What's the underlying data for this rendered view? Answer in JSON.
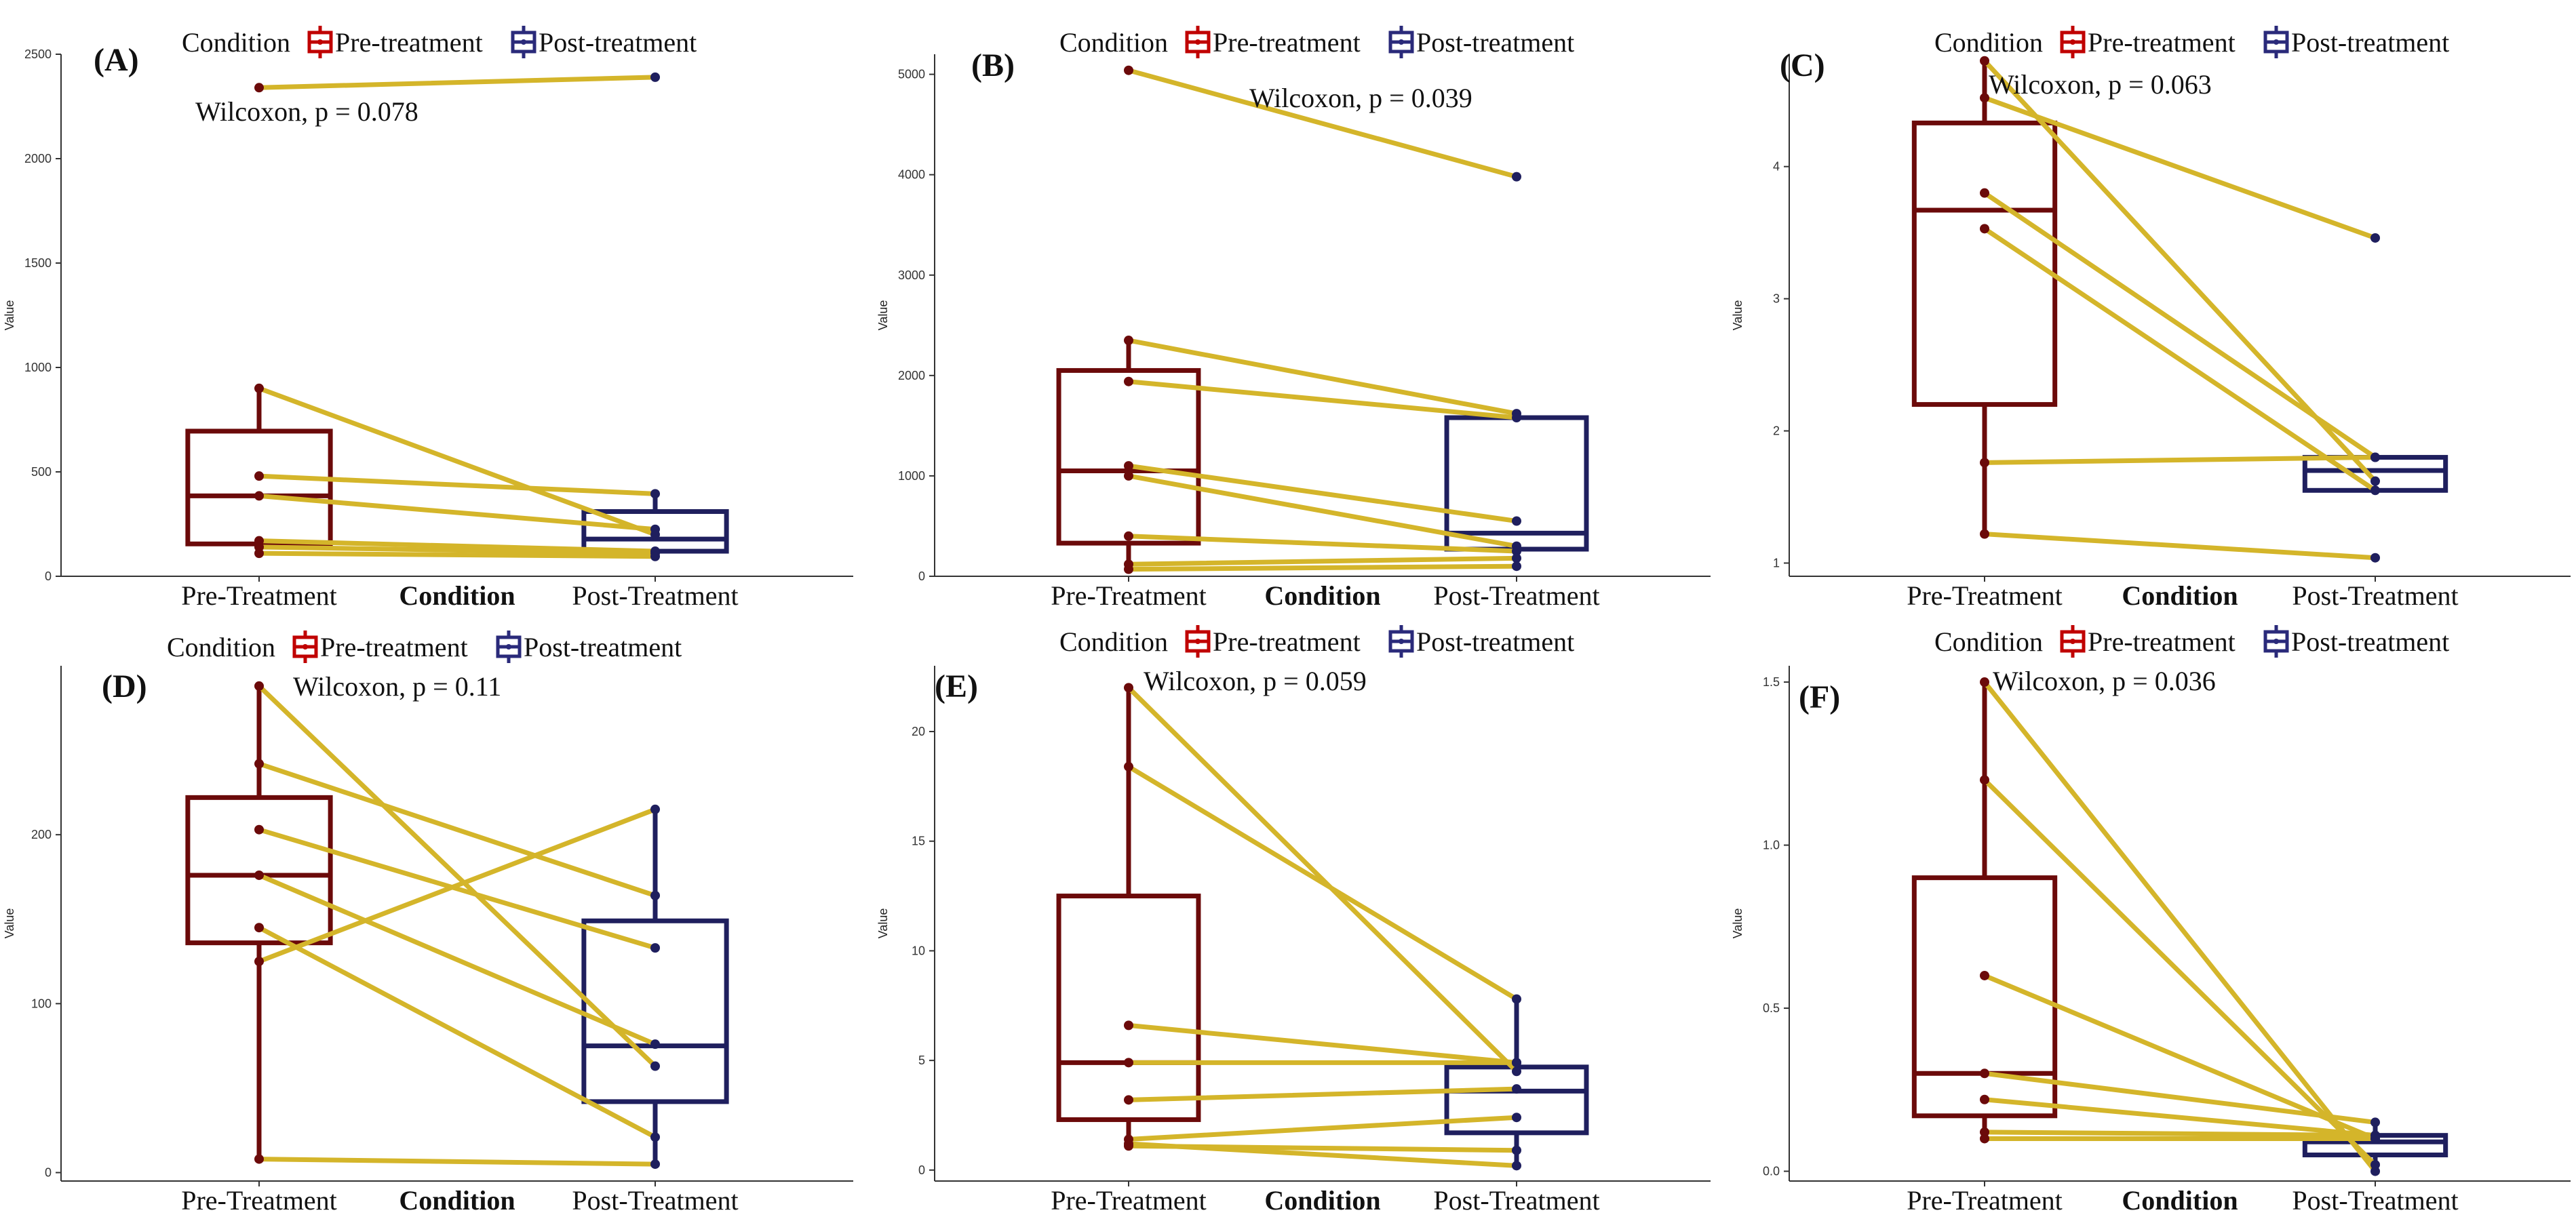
{
  "colors": {
    "pre": "#6B0A0A",
    "post": "#1F1F5E",
    "line": "#D4B52A",
    "axis": "#333333",
    "legend_pre": "#C00000",
    "legend_post": "#2A2A7A"
  },
  "chart_data": [
    {
      "id": "A",
      "panel_label": "(A)",
      "type": "box",
      "title": "",
      "legend_title": "Condition",
      "legend_labels": [
        "Pre-treatment",
        "Post-treatment"
      ],
      "stat_text": "Wilcoxon, p = 0.078",
      "xlabel": "Condition",
      "ylabel": "Value",
      "categories": [
        "Pre-Treatment",
        "Post-Treatment"
      ],
      "ylim": [
        0,
        2500
      ],
      "yticks": [
        0,
        500,
        1000,
        1500,
        2000,
        2500
      ],
      "ytick_labels": [
        "0",
        "500",
        "1000",
        "1500",
        "2000",
        "2500"
      ],
      "box": [
        {
          "q1": 155,
          "median": 385,
          "q3": 695,
          "wmin": 100,
          "wmax": 900
        },
        {
          "q1": 120,
          "median": 178,
          "q3": 310,
          "wmin": 85,
          "wmax": 400
        }
      ],
      "pairs": [
        [
          2340,
          2390
        ],
        [
          900,
          200
        ],
        [
          480,
          395
        ],
        [
          385,
          225
        ],
        [
          170,
          120
        ],
        [
          140,
          110
        ],
        [
          110,
          95
        ]
      ]
    },
    {
      "id": "B",
      "panel_label": "(B)",
      "type": "box",
      "title": "",
      "legend_title": "Condition",
      "legend_labels": [
        "Pre-treatment",
        "Post-treatment"
      ],
      "stat_text": "Wilcoxon, p = 0.039",
      "xlabel": "Condition",
      "ylabel": "Value",
      "categories": [
        "Pre-Treatment",
        "Post-Treatment"
      ],
      "ylim": [
        0,
        5200
      ],
      "yticks": [
        0,
        1000,
        2000,
        3000,
        4000,
        5000
      ],
      "ytick_labels": [
        "0",
        "1000",
        "2000",
        "3000",
        "4000",
        "5000"
      ],
      "box": [
        {
          "q1": 330,
          "median": 1050,
          "q3": 2050,
          "wmin": 70,
          "wmax": 2350
        },
        {
          "q1": 270,
          "median": 430,
          "q3": 1580,
          "wmin": 100,
          "wmax": 1620
        }
      ],
      "pairs": [
        [
          5040,
          3980
        ],
        [
          2350,
          1620
        ],
        [
          1940,
          1580
        ],
        [
          1100,
          550
        ],
        [
          1000,
          300
        ],
        [
          400,
          250
        ],
        [
          120,
          180
        ],
        [
          70,
          100
        ]
      ]
    },
    {
      "id": "C",
      "panel_label": "(C)",
      "type": "box",
      "title": "",
      "legend_title": "Condition",
      "legend_labels": [
        "Pre-treatment",
        "Post-treatment"
      ],
      "stat_text": "Wilcoxon, p = 0.063",
      "xlabel": "Condition",
      "ylabel": "Value",
      "categories": [
        "Pre-Treatment",
        "Post-Treatment"
      ],
      "ylim": [
        0.9,
        4.85
      ],
      "yticks": [
        1,
        2,
        3,
        4
      ],
      "ytick_labels": [
        "1",
        "2",
        "3",
        "4"
      ],
      "box": [
        {
          "q1": 2.2,
          "median": 3.67,
          "q3": 4.33,
          "wmin": 1.22,
          "wmax": 4.8
        },
        {
          "q1": 1.55,
          "median": 1.7,
          "q3": 1.8,
          "wmin": 1.55,
          "wmax": 1.8
        }
      ],
      "pairs": [
        [
          4.8,
          1.62
        ],
        [
          4.52,
          3.46
        ],
        [
          3.8,
          1.8
        ],
        [
          3.53,
          1.55
        ],
        [
          1.76,
          1.8
        ],
        [
          1.22,
          1.04
        ]
      ]
    },
    {
      "id": "D",
      "panel_label": "(D)",
      "type": "box",
      "title": "",
      "legend_title": "Condition",
      "legend_labels": [
        "Pre-treatment",
        "Post-treatment"
      ],
      "stat_text": "Wilcoxon, p = 0.11",
      "xlabel": "Condition",
      "ylabel": "Value",
      "categories": [
        "Pre-Treatment",
        "Post-Treatment"
      ],
      "ylim": [
        -5,
        300
      ],
      "yticks": [
        0,
        100,
        200
      ],
      "ytick_labels": [
        "0",
        "100",
        "200"
      ],
      "box": [
        {
          "q1": 136,
          "median": 176,
          "q3": 222,
          "wmin": 8,
          "wmax": 288
        },
        {
          "q1": 42,
          "median": 75,
          "q3": 149,
          "wmin": 5,
          "wmax": 215
        }
      ],
      "pairs": [
        [
          288,
          63
        ],
        [
          242,
          164
        ],
        [
          203,
          133
        ],
        [
          176,
          76
        ],
        [
          145,
          21
        ],
        [
          125,
          215
        ],
        [
          8,
          5
        ]
      ]
    },
    {
      "id": "E",
      "panel_label": "(E)",
      "type": "box",
      "title": "",
      "legend_title": "Condition",
      "legend_labels": [
        "Pre-treatment",
        "Post-treatment"
      ],
      "stat_text": "Wilcoxon, p = 0.059",
      "xlabel": "Condition",
      "ylabel": "Value",
      "categories": [
        "Pre-Treatment",
        "Post-Treatment"
      ],
      "ylim": [
        -0.5,
        23
      ],
      "yticks": [
        0,
        5,
        10,
        15,
        20
      ],
      "ytick_labels": [
        "0",
        "5",
        "10",
        "15",
        "20"
      ],
      "box": [
        {
          "q1": 2.3,
          "median": 4.9,
          "q3": 12.5,
          "wmin": 1.1,
          "wmax": 22
        },
        {
          "q1": 1.7,
          "median": 3.6,
          "q3": 4.7,
          "wmin": 0.2,
          "wmax": 7.8
        }
      ],
      "pairs": [
        [
          22,
          4.5
        ],
        [
          18.4,
          7.8
        ],
        [
          6.6,
          4.9
        ],
        [
          4.9,
          4.9
        ],
        [
          3.2,
          3.7
        ],
        [
          1.4,
          2.4
        ],
        [
          1.1,
          0.9
        ],
        [
          1.2,
          0.2
        ]
      ]
    },
    {
      "id": "F",
      "panel_label": "(F)",
      "type": "box",
      "title": "",
      "legend_title": "Condition",
      "legend_labels": [
        "Pre-treatment",
        "Post-treatment"
      ],
      "stat_text": "Wilcoxon, p = 0.036",
      "xlabel": "Condition",
      "ylabel": "Value",
      "categories": [
        "Pre-Treatment",
        "Post-Treatment"
      ],
      "ylim": [
        -0.03,
        1.55
      ],
      "yticks": [
        0.0,
        0.5,
        1.0,
        1.5
      ],
      "ytick_labels": [
        "0.0",
        "0.5",
        "1.0",
        "1.5"
      ],
      "box": [
        {
          "q1": 0.17,
          "median": 0.3,
          "q3": 0.9,
          "wmin": 0.1,
          "wmax": 1.5
        },
        {
          "q1": 0.05,
          "median": 0.09,
          "q3": 0.11,
          "wmin": 0.0,
          "wmax": 0.15
        }
      ],
      "pairs": [
        [
          1.5,
          0.0
        ],
        [
          1.2,
          0.02
        ],
        [
          0.6,
          0.1
        ],
        [
          0.3,
          0.15
        ],
        [
          0.22,
          0.11
        ],
        [
          0.12,
          0.11
        ],
        [
          0.1,
          0.1
        ]
      ]
    }
  ]
}
